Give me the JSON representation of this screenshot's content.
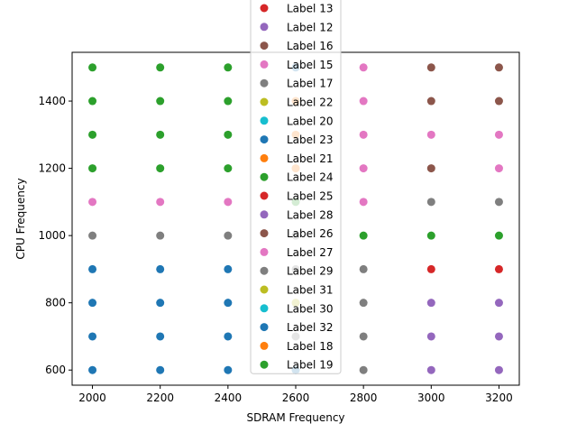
{
  "chart_data": {
    "type": "scatter",
    "xlabel": "SDRAM Frequency",
    "ylabel": "CPU Frequency",
    "xlim": [
      1940,
      3260
    ],
    "ylim": [
      555,
      1545
    ],
    "xticks": [
      2000,
      2200,
      2400,
      2600,
      2800,
      3000,
      3200
    ],
    "yticks": [
      600,
      800,
      1000,
      1200,
      1400
    ],
    "grid": false,
    "legend_placement": "upper-center",
    "legend": [
      {
        "label": "Label 13",
        "color": "#d62728"
      },
      {
        "label": "Label 12",
        "color": "#9467bd"
      },
      {
        "label": "Label 16",
        "color": "#8c564b"
      },
      {
        "label": "Label 15",
        "color": "#e377c2"
      },
      {
        "label": "Label 17",
        "color": "#7f7f7f"
      },
      {
        "label": "Label 22",
        "color": "#bcbd22"
      },
      {
        "label": "Label 20",
        "color": "#17becf"
      },
      {
        "label": "Label 23",
        "color": "#1f77b4"
      },
      {
        "label": "Label 21",
        "color": "#ff7f0e"
      },
      {
        "label": "Label 24",
        "color": "#2ca02c"
      },
      {
        "label": "Label 25",
        "color": "#d62728"
      },
      {
        "label": "Label 28",
        "color": "#9467bd"
      },
      {
        "label": "Label 26",
        "color": "#8c564b"
      },
      {
        "label": "Label 27",
        "color": "#e377c2"
      },
      {
        "label": "Label 29",
        "color": "#7f7f7f"
      },
      {
        "label": "Label 31",
        "color": "#bcbd22"
      },
      {
        "label": "Label 30",
        "color": "#17becf"
      },
      {
        "label": "Label 32",
        "color": "#1f77b4"
      },
      {
        "label": "Label 18",
        "color": "#ff7f0e"
      },
      {
        "label": "Label 19",
        "color": "#2ca02c"
      }
    ],
    "points": [
      {
        "x": 2000,
        "y": 1500,
        "color": "#2ca02c"
      },
      {
        "x": 2000,
        "y": 1400,
        "color": "#2ca02c"
      },
      {
        "x": 2000,
        "y": 1300,
        "color": "#2ca02c"
      },
      {
        "x": 2000,
        "y": 1200,
        "color": "#2ca02c"
      },
      {
        "x": 2000,
        "y": 1100,
        "color": "#e377c2"
      },
      {
        "x": 2000,
        "y": 1000,
        "color": "#7f7f7f"
      },
      {
        "x": 2000,
        "y": 900,
        "color": "#1f77b4"
      },
      {
        "x": 2000,
        "y": 800,
        "color": "#1f77b4"
      },
      {
        "x": 2000,
        "y": 700,
        "color": "#1f77b4"
      },
      {
        "x": 2000,
        "y": 600,
        "color": "#1f77b4"
      },
      {
        "x": 2200,
        "y": 1500,
        "color": "#2ca02c"
      },
      {
        "x": 2200,
        "y": 1400,
        "color": "#2ca02c"
      },
      {
        "x": 2200,
        "y": 1300,
        "color": "#2ca02c"
      },
      {
        "x": 2200,
        "y": 1200,
        "color": "#2ca02c"
      },
      {
        "x": 2200,
        "y": 1100,
        "color": "#e377c2"
      },
      {
        "x": 2200,
        "y": 1000,
        "color": "#7f7f7f"
      },
      {
        "x": 2200,
        "y": 900,
        "color": "#1f77b4"
      },
      {
        "x": 2200,
        "y": 800,
        "color": "#1f77b4"
      },
      {
        "x": 2200,
        "y": 700,
        "color": "#1f77b4"
      },
      {
        "x": 2200,
        "y": 600,
        "color": "#1f77b4"
      },
      {
        "x": 2400,
        "y": 1500,
        "color": "#2ca02c"
      },
      {
        "x": 2400,
        "y": 1400,
        "color": "#2ca02c"
      },
      {
        "x": 2400,
        "y": 1300,
        "color": "#2ca02c"
      },
      {
        "x": 2400,
        "y": 1200,
        "color": "#2ca02c"
      },
      {
        "x": 2400,
        "y": 1100,
        "color": "#e377c2"
      },
      {
        "x": 2400,
        "y": 1000,
        "color": "#7f7f7f"
      },
      {
        "x": 2400,
        "y": 900,
        "color": "#1f77b4"
      },
      {
        "x": 2400,
        "y": 800,
        "color": "#1f77b4"
      },
      {
        "x": 2400,
        "y": 700,
        "color": "#1f77b4"
      },
      {
        "x": 2400,
        "y": 600,
        "color": "#1f77b4"
      },
      {
        "x": 2600,
        "y": 1500,
        "color": "#1f77b4"
      },
      {
        "x": 2600,
        "y": 1400,
        "color": "#ff7f0e"
      },
      {
        "x": 2600,
        "y": 1300,
        "color": "#ff7f0e"
      },
      {
        "x": 2600,
        "y": 1200,
        "color": "#ff7f0e"
      },
      {
        "x": 2600,
        "y": 1100,
        "color": "#2ca02c"
      },
      {
        "x": 2600,
        "y": 1000,
        "color": "#7f7f7f"
      },
      {
        "x": 2600,
        "y": 900,
        "color": "#7f7f7f"
      },
      {
        "x": 2600,
        "y": 800,
        "color": "#bcbd22"
      },
      {
        "x": 2600,
        "y": 700,
        "color": "#7f7f7f"
      },
      {
        "x": 2600,
        "y": 600,
        "color": "#1f77b4"
      },
      {
        "x": 2800,
        "y": 1500,
        "color": "#e377c2"
      },
      {
        "x": 2800,
        "y": 1400,
        "color": "#e377c2"
      },
      {
        "x": 2800,
        "y": 1300,
        "color": "#e377c2"
      },
      {
        "x": 2800,
        "y": 1200,
        "color": "#e377c2"
      },
      {
        "x": 2800,
        "y": 1100,
        "color": "#e377c2"
      },
      {
        "x": 2800,
        "y": 1000,
        "color": "#2ca02c"
      },
      {
        "x": 2800,
        "y": 900,
        "color": "#7f7f7f"
      },
      {
        "x": 2800,
        "y": 800,
        "color": "#7f7f7f"
      },
      {
        "x": 2800,
        "y": 700,
        "color": "#7f7f7f"
      },
      {
        "x": 2800,
        "y": 600,
        "color": "#7f7f7f"
      },
      {
        "x": 3000,
        "y": 1500,
        "color": "#8c564b"
      },
      {
        "x": 3000,
        "y": 1400,
        "color": "#8c564b"
      },
      {
        "x": 3000,
        "y": 1300,
        "color": "#e377c2"
      },
      {
        "x": 3000,
        "y": 1200,
        "color": "#8c564b"
      },
      {
        "x": 3000,
        "y": 1100,
        "color": "#7f7f7f"
      },
      {
        "x": 3000,
        "y": 1000,
        "color": "#2ca02c"
      },
      {
        "x": 3000,
        "y": 900,
        "color": "#d62728"
      },
      {
        "x": 3000,
        "y": 800,
        "color": "#9467bd"
      },
      {
        "x": 3000,
        "y": 700,
        "color": "#9467bd"
      },
      {
        "x": 3000,
        "y": 600,
        "color": "#9467bd"
      },
      {
        "x": 3200,
        "y": 1500,
        "color": "#8c564b"
      },
      {
        "x": 3200,
        "y": 1400,
        "color": "#8c564b"
      },
      {
        "x": 3200,
        "y": 1300,
        "color": "#e377c2"
      },
      {
        "x": 3200,
        "y": 1200,
        "color": "#e377c2"
      },
      {
        "x": 3200,
        "y": 1100,
        "color": "#7f7f7f"
      },
      {
        "x": 3200,
        "y": 1000,
        "color": "#2ca02c"
      },
      {
        "x": 3200,
        "y": 900,
        "color": "#d62728"
      },
      {
        "x": 3200,
        "y": 800,
        "color": "#9467bd"
      },
      {
        "x": 3200,
        "y": 700,
        "color": "#9467bd"
      },
      {
        "x": 3200,
        "y": 600,
        "color": "#9467bd"
      }
    ]
  }
}
